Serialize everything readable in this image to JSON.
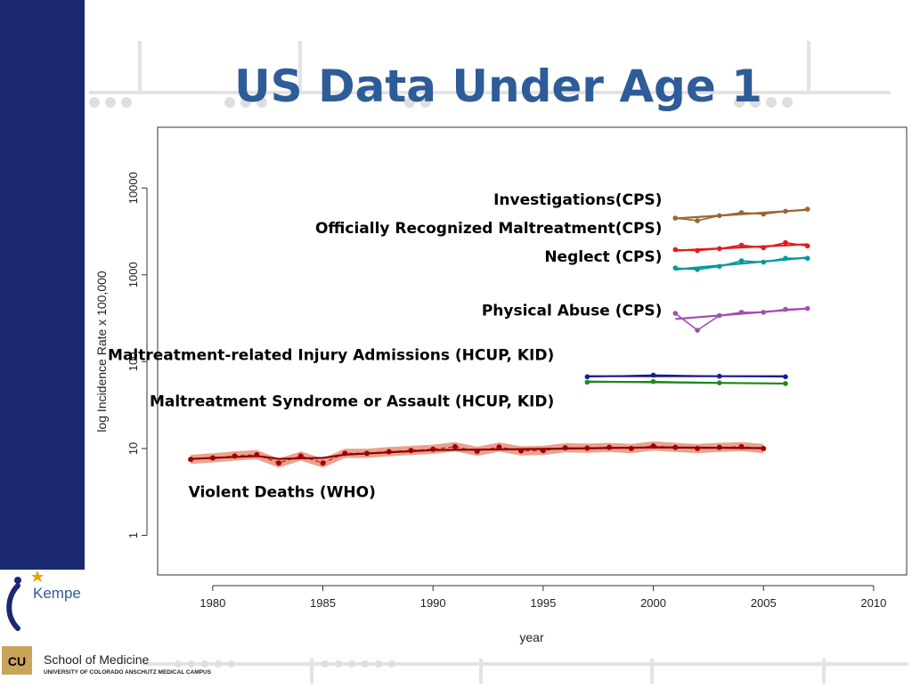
{
  "slide": {
    "title": "US Data Under Age 1",
    "logos": {
      "kempe": "Kempe",
      "school_line1": "School of Medicine",
      "school_line2": "UNIVERSITY OF COLORADO ANSCHUTZ MEDICAL CAMPUS",
      "cu_mark": "CU"
    }
  },
  "colors": {
    "sidebar": "#1b2872",
    "title": "#2e5c98",
    "investigations": "#996633",
    "officially_recognized": "#e41a1c",
    "neglect": "#009999",
    "physical_abuse": "#a050b0",
    "hcup_injury": "#1a1a99",
    "hcup_syndrome": "#1a8a1a",
    "violent_deaths": "#b22222",
    "violent_deaths_band": "#e8907a"
  },
  "chart_data": {
    "type": "line",
    "xlabel": "year",
    "ylabel": "log Incidence Rate x 100,000",
    "xlim": [
      1977.5,
      2011.5
    ],
    "ylim": [
      0.35,
      50000
    ],
    "y_scale": "log",
    "x_ticks": [
      1980,
      1985,
      1990,
      1995,
      2000,
      2005,
      2010
    ],
    "y_ticks": [
      1,
      10,
      100,
      1000,
      10000
    ],
    "y_tick_labels": [
      "1",
      "10",
      "100",
      "1000",
      "10000"
    ],
    "grid": false,
    "legend": "none",
    "series": [
      {
        "key": "investigations",
        "name": "Investigations(CPS)",
        "color_key": "investigations",
        "points": [
          [
            2001,
            4500
          ],
          [
            2002,
            4200
          ],
          [
            2003,
            4800
          ],
          [
            2004,
            5200
          ],
          [
            2005,
            5000
          ],
          [
            2006,
            5400
          ],
          [
            2007,
            5700
          ]
        ],
        "fit": [
          [
            2001,
            4450
          ],
          [
            2007,
            5600
          ]
        ]
      },
      {
        "key": "officially_recognized",
        "name": "Officially Recognized Maltreatment(CPS)",
        "color_key": "officially_recognized",
        "points": [
          [
            2001,
            1950
          ],
          [
            2002,
            1900
          ],
          [
            2003,
            2000
          ],
          [
            2004,
            2200
          ],
          [
            2005,
            2050
          ],
          [
            2006,
            2350
          ],
          [
            2007,
            2150
          ]
        ],
        "fit": [
          [
            2001,
            1900
          ],
          [
            2007,
            2250
          ]
        ]
      },
      {
        "key": "neglect",
        "name": "Neglect (CPS)",
        "color_key": "neglect",
        "points": [
          [
            2001,
            1200
          ],
          [
            2002,
            1150
          ],
          [
            2003,
            1250
          ],
          [
            2004,
            1450
          ],
          [
            2005,
            1400
          ],
          [
            2006,
            1550
          ],
          [
            2007,
            1550
          ]
        ],
        "fit": [
          [
            2001,
            1150
          ],
          [
            2007,
            1580
          ]
        ]
      },
      {
        "key": "physical_abuse",
        "name": "Physical Abuse (CPS)",
        "color_key": "physical_abuse",
        "points": [
          [
            2001,
            360
          ],
          [
            2002,
            230
          ],
          [
            2003,
            340
          ],
          [
            2004,
            370
          ],
          [
            2005,
            370
          ],
          [
            2006,
            400
          ],
          [
            2007,
            410
          ]
        ],
        "fit": [
          [
            2001,
            310
          ],
          [
            2007,
            410
          ]
        ]
      },
      {
        "key": "hcup_injury",
        "name": "Maltreatment-related Injury Admissions (HCUP, KID)",
        "color_key": "hcup_injury",
        "points": [
          [
            1997,
            67
          ],
          [
            2000,
            70
          ],
          [
            2003,
            68
          ],
          [
            2006,
            67
          ]
        ],
        "fit": [
          [
            1997,
            68
          ],
          [
            2006,
            68
          ]
        ]
      },
      {
        "key": "hcup_syndrome",
        "name": "Maltreatment Syndrome or Assault (HCUP, KID)",
        "color_key": "hcup_syndrome",
        "points": [
          [
            1997,
            58
          ],
          [
            2000,
            59
          ],
          [
            2003,
            57
          ],
          [
            2006,
            56
          ]
        ],
        "fit": [
          [
            1997,
            59
          ],
          [
            2006,
            56
          ]
        ]
      },
      {
        "key": "violent_deaths",
        "name": "Violent Deaths (WHO)",
        "color_key": "violent_deaths",
        "band_color_key": "violent_deaths_band",
        "points": [
          [
            1979,
            7.5
          ],
          [
            1980,
            7.8
          ],
          [
            1981,
            8.2
          ],
          [
            1982,
            8.5
          ],
          [
            1983,
            6.8
          ],
          [
            1984,
            8.2
          ],
          [
            1985,
            6.8
          ],
          [
            1986,
            8.8
          ],
          [
            1987,
            8.8
          ],
          [
            1988,
            9.2
          ],
          [
            1989,
            9.5
          ],
          [
            1990,
            9.8
          ],
          [
            1991,
            10.5
          ],
          [
            1992,
            9.3
          ],
          [
            1993,
            10.4
          ],
          [
            1994,
            9.4
          ],
          [
            1995,
            9.5
          ],
          [
            1996,
            10.2
          ],
          [
            1997,
            10.1
          ],
          [
            1998,
            10.3
          ],
          [
            1999,
            10.0
          ],
          [
            2000,
            10.7
          ],
          [
            2001,
            10.3
          ],
          [
            2002,
            10.0
          ],
          [
            2003,
            10.3
          ],
          [
            2004,
            10.5
          ],
          [
            2005,
            10.0
          ]
        ],
        "trend": [
          [
            1979,
            7.6
          ],
          [
            1982,
            8.2
          ],
          [
            1983,
            7.6
          ],
          [
            1985,
            7.8
          ],
          [
            1986,
            8.5
          ],
          [
            1990,
            9.6
          ],
          [
            1995,
            9.9
          ],
          [
            2000,
            10.3
          ],
          [
            2003,
            10.2
          ],
          [
            2005,
            10.1
          ]
        ]
      }
    ],
    "annotations": [
      {
        "text": "Investigations(CPS)",
        "anchor": "end",
        "x": 2000.4,
        "y": 6400
      },
      {
        "text": "Officially Recognized Maltreatment(CPS)",
        "anchor": "end",
        "x": 2000.4,
        "y": 3030
      },
      {
        "text": "Neglect (CPS)",
        "anchor": "end",
        "x": 2000.4,
        "y": 1420
      },
      {
        "text": "Physical Abuse (CPS)",
        "anchor": "end",
        "x": 2000.4,
        "y": 340
      },
      {
        "text": "Maltreatment-related Injury Admissions (HCUP, KID)",
        "anchor": "end",
        "x": 1995.5,
        "y": 105
      },
      {
        "text": "Maltreatment Syndrome or Assault (HCUP, KID)",
        "anchor": "end",
        "x": 1995.5,
        "y": 30.5
      },
      {
        "text": "Violent Deaths (WHO)",
        "anchor": "start",
        "x": 1978.9,
        "y": 2.75
      }
    ]
  }
}
